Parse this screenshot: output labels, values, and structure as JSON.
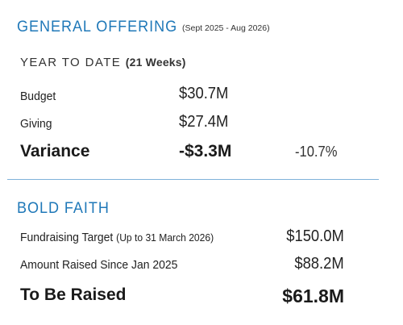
{
  "general_offering": {
    "title": "GENERAL OFFERING",
    "period": "(Sept 2025 - Aug 2026)",
    "ytd_label": "YEAR TO DATE",
    "ytd_weeks": "(21 Weeks)",
    "rows": [
      {
        "label": "Budget",
        "value": "$30.7M"
      },
      {
        "label": "Giving",
        "value": "$27.4M"
      }
    ],
    "variance": {
      "label": "Variance",
      "value": "-$3.3M",
      "percent": "-10.7%"
    }
  },
  "bold_faith": {
    "title": "BOLD FAITH",
    "target_label": "Fundraising Target",
    "target_note": "(Up to 31 March 2026)",
    "target_value": "$150.0M",
    "raised_label": "Amount Raised Since Jan 2025",
    "raised_value": "$88.2M",
    "remaining_label": "To Be Raised",
    "remaining_value": "$61.8M"
  },
  "colors": {
    "heading": "#1f78b8",
    "divider": "#7fb2da"
  }
}
